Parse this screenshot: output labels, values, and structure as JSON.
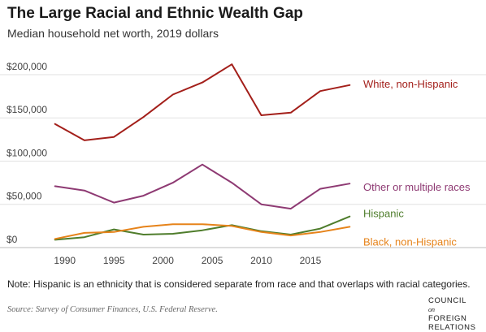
{
  "header": {
    "title": "The Large Racial and Ethnic Wealth Gap",
    "subtitle": "Median household net worth, 2019 dollars"
  },
  "footer": {
    "note": "Note: Hispanic is an ethnicity that is considered separate from race and that overlaps with racial categories.",
    "source": "Source: Survey of Consumer Finances, U.S. Federal Reserve.",
    "logo_lines": [
      "COUNCIL",
      "on",
      "FOREIGN",
      "RELATIONS"
    ]
  },
  "chart_data": {
    "type": "line",
    "title": "The Large Racial and Ethnic Wealth Gap",
    "subtitle": "Median household net worth, 2019 dollars",
    "xlabel": "",
    "ylabel": "",
    "x": [
      1989,
      1992,
      1995,
      1998,
      2001,
      2004,
      2007,
      2010,
      2013,
      2016,
      2019
    ],
    "xticks": [
      1990,
      1995,
      2000,
      2005,
      2010,
      2015
    ],
    "yticks": [
      0,
      50000,
      100000,
      150000,
      200000
    ],
    "ytick_labels": [
      "$0",
      "$50,000",
      "$100,000",
      "$150,000",
      "$200,000"
    ],
    "xlim": [
      1988.2,
      2019.8
    ],
    "ylim": [
      0,
      215000
    ],
    "grid": "horizontal",
    "series": [
      {
        "name": "White, non-Hispanic",
        "color": "#a31f1a",
        "values": [
          143000,
          124000,
          128000,
          151000,
          177000,
          191000,
          212000,
          153000,
          156000,
          181000,
          188000
        ]
      },
      {
        "name": "Other or multiple races",
        "color": "#8e3a73",
        "values": [
          71000,
          66000,
          52000,
          60000,
          75000,
          96000,
          75000,
          50000,
          45000,
          68000,
          74000
        ]
      },
      {
        "name": "Hispanic",
        "color": "#4f7d2c",
        "values": [
          9000,
          12000,
          21000,
          15000,
          16000,
          20000,
          26000,
          19000,
          15000,
          22000,
          36000
        ]
      },
      {
        "name": "Black, non-Hispanic",
        "color": "#e6831a",
        "values": [
          10000,
          17000,
          18000,
          24000,
          27000,
          27000,
          25000,
          18000,
          14000,
          18000,
          24000
        ]
      }
    ]
  }
}
